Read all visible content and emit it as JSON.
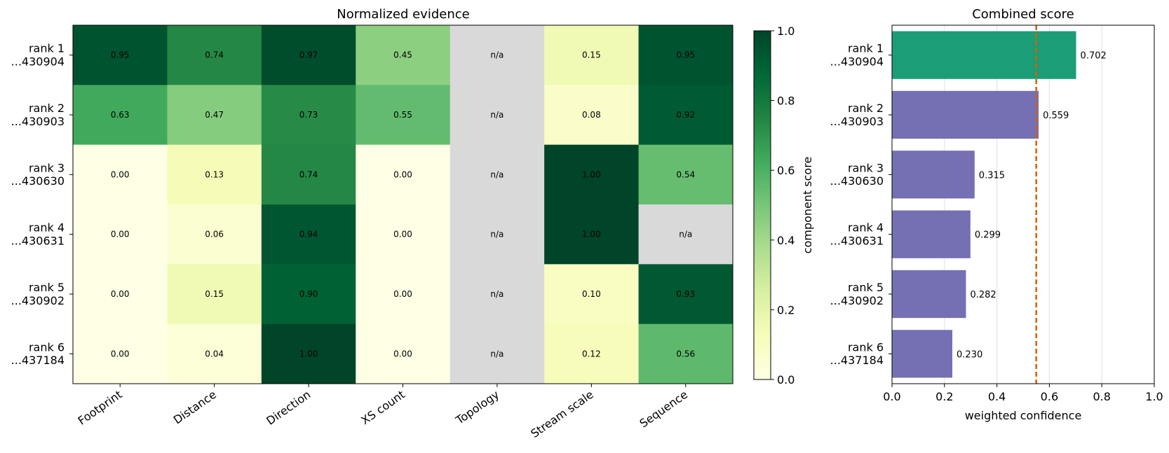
{
  "chart_data": [
    {
      "type": "heatmap",
      "title": "Normalized evidence",
      "rows": [
        "rank 1\n...430904",
        "rank 2\n...430903",
        "rank 3\n...430630",
        "rank 4\n...430631",
        "rank 5\n...430902",
        "rank 6\n...437184"
      ],
      "columns": [
        "Footprint",
        "Distance",
        "Direction",
        "XS count",
        "Topology",
        "Stream scale",
        "Sequence"
      ],
      "values": [
        [
          0.95,
          0.74,
          0.97,
          0.45,
          null,
          0.15,
          0.95
        ],
        [
          0.63,
          0.47,
          0.73,
          0.55,
          null,
          0.08,
          0.92
        ],
        [
          0.0,
          0.13,
          0.74,
          0.0,
          null,
          1.0,
          0.54
        ],
        [
          0.0,
          0.06,
          0.94,
          0.0,
          null,
          1.0,
          null
        ],
        [
          0.0,
          0.15,
          0.9,
          0.0,
          null,
          0.1,
          0.93
        ],
        [
          0.0,
          0.04,
          1.0,
          0.0,
          null,
          0.12,
          0.56
        ]
      ],
      "missing_label": "n/a",
      "missing_color": "#d9d9d9",
      "colormap": "YlGn",
      "colorbar": {
        "label": "component score",
        "ticks": [
          "0.0",
          "0.2",
          "0.4",
          "0.6",
          "0.8",
          "1.0"
        ],
        "range": [
          0,
          1
        ]
      }
    },
    {
      "type": "bar",
      "orientation": "horizontal",
      "title": "Combined score",
      "categories": [
        "rank 1\n...430904",
        "rank 2\n...430903",
        "rank 3\n...430630",
        "rank 4\n...430631",
        "rank 5\n...430902",
        "rank 6\n...437184"
      ],
      "values": [
        0.702,
        0.559,
        0.315,
        0.299,
        0.282,
        0.23
      ],
      "value_labels": [
        "0.702",
        "0.559",
        "0.315",
        "0.299",
        "0.282",
        "0.230"
      ],
      "colors": [
        "#1b9e77",
        "#7570b3",
        "#7570b3",
        "#7570b3",
        "#7570b3",
        "#7570b3"
      ],
      "xlabel": "weighted confidence",
      "xlim": [
        0,
        1
      ],
      "xticks": [
        "0.0",
        "0.2",
        "0.4",
        "0.6",
        "0.8",
        "1.0"
      ],
      "threshold": 0.55,
      "threshold_color": "#d95f02",
      "grid": "vertical"
    }
  ]
}
